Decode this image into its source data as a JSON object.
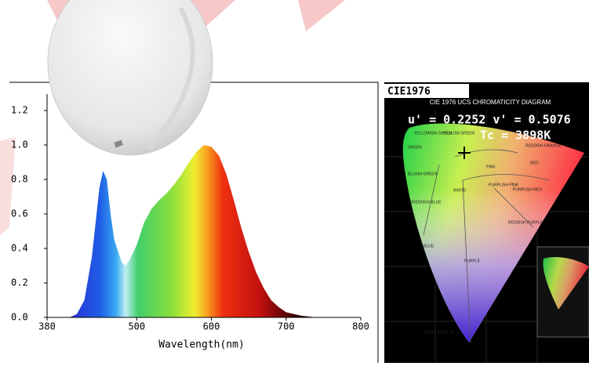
{
  "chart_data": {
    "type": "area",
    "x_label": "Wavelength(nm)",
    "x": [
      410,
      420,
      430,
      440,
      450,
      455,
      460,
      465,
      470,
      480,
      485,
      490,
      500,
      510,
      520,
      530,
      540,
      550,
      560,
      570,
      580,
      590,
      600,
      610,
      620,
      630,
      640,
      650,
      660,
      670,
      680,
      690,
      700,
      720,
      740
    ],
    "values": [
      0,
      0.02,
      0.1,
      0.35,
      0.75,
      0.85,
      0.8,
      0.6,
      0.45,
      0.32,
      0.3,
      0.33,
      0.42,
      0.55,
      0.63,
      0.68,
      0.72,
      0.77,
      0.83,
      0.9,
      0.96,
      1.0,
      0.99,
      0.94,
      0.83,
      0.68,
      0.52,
      0.38,
      0.26,
      0.17,
      0.1,
      0.06,
      0.03,
      0.01,
      0
    ],
    "xlim": [
      380,
      800
    ],
    "xticks": [
      380,
      500,
      600,
      700,
      800
    ],
    "ylim": [
      0,
      1.2
    ],
    "yticks": [
      {
        "value": 0,
        "label": "0.0"
      },
      0.2,
      0.4,
      0.6,
      0.8,
      {
        "value": 1,
        "label": "1.0"
      },
      1.2
    ]
  },
  "cie_panel": {
    "label": "CIE1976",
    "title": "CIE 1976 UCS CHROMATICITY DIAGRAM",
    "coordinates": "u' = 0.2252 v' = 0.5076",
    "cct": "Tc = 3898K",
    "regions": [
      "YELLOWISH GREEN",
      "YELLOW GREEN",
      "GREEN",
      "BLUISH GREEN",
      "GREENISH BLUE",
      "BLUE",
      "PURPLE",
      "PURPLISH BLUE",
      "WHITE",
      "PINK",
      "PURPLISH PINK",
      "PURPLISH RED",
      "RED",
      "REDDISH ORANGE",
      "REDDISH PURPLE"
    ]
  }
}
